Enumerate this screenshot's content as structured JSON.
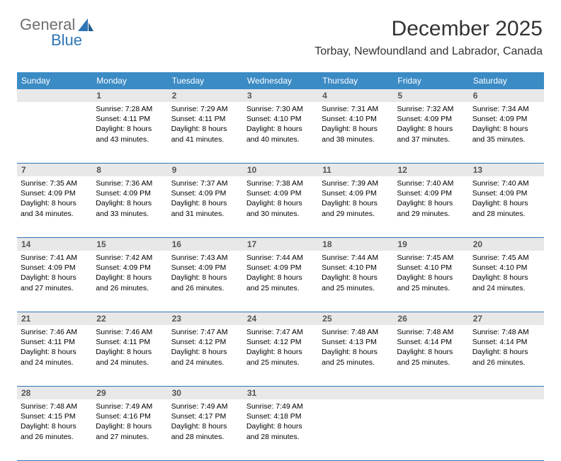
{
  "logo": {
    "text1": "General",
    "text2": "Blue"
  },
  "header": {
    "title": "December 2025",
    "subtitle": "Torbay, Newfoundland and Labrador, Canada"
  },
  "colors": {
    "header_bg": "#3b8bc5",
    "header_text": "#ffffff",
    "daynum_bg": "#e8e8e8",
    "row_border": "#2e75b6",
    "logo_gray": "#6d6e71",
    "logo_blue": "#2e75b6"
  },
  "daynames": [
    "Sunday",
    "Monday",
    "Tuesday",
    "Wednesday",
    "Thursday",
    "Friday",
    "Saturday"
  ],
  "weeks": [
    [
      {
        "day": "",
        "lines": []
      },
      {
        "day": "1",
        "lines": [
          "Sunrise: 7:28 AM",
          "Sunset: 4:11 PM",
          "Daylight: 8 hours",
          "and 43 minutes."
        ]
      },
      {
        "day": "2",
        "lines": [
          "Sunrise: 7:29 AM",
          "Sunset: 4:11 PM",
          "Daylight: 8 hours",
          "and 41 minutes."
        ]
      },
      {
        "day": "3",
        "lines": [
          "Sunrise: 7:30 AM",
          "Sunset: 4:10 PM",
          "Daylight: 8 hours",
          "and 40 minutes."
        ]
      },
      {
        "day": "4",
        "lines": [
          "Sunrise: 7:31 AM",
          "Sunset: 4:10 PM",
          "Daylight: 8 hours",
          "and 38 minutes."
        ]
      },
      {
        "day": "5",
        "lines": [
          "Sunrise: 7:32 AM",
          "Sunset: 4:09 PM",
          "Daylight: 8 hours",
          "and 37 minutes."
        ]
      },
      {
        "day": "6",
        "lines": [
          "Sunrise: 7:34 AM",
          "Sunset: 4:09 PM",
          "Daylight: 8 hours",
          "and 35 minutes."
        ]
      }
    ],
    [
      {
        "day": "7",
        "lines": [
          "Sunrise: 7:35 AM",
          "Sunset: 4:09 PM",
          "Daylight: 8 hours",
          "and 34 minutes."
        ]
      },
      {
        "day": "8",
        "lines": [
          "Sunrise: 7:36 AM",
          "Sunset: 4:09 PM",
          "Daylight: 8 hours",
          "and 33 minutes."
        ]
      },
      {
        "day": "9",
        "lines": [
          "Sunrise: 7:37 AM",
          "Sunset: 4:09 PM",
          "Daylight: 8 hours",
          "and 31 minutes."
        ]
      },
      {
        "day": "10",
        "lines": [
          "Sunrise: 7:38 AM",
          "Sunset: 4:09 PM",
          "Daylight: 8 hours",
          "and 30 minutes."
        ]
      },
      {
        "day": "11",
        "lines": [
          "Sunrise: 7:39 AM",
          "Sunset: 4:09 PM",
          "Daylight: 8 hours",
          "and 29 minutes."
        ]
      },
      {
        "day": "12",
        "lines": [
          "Sunrise: 7:40 AM",
          "Sunset: 4:09 PM",
          "Daylight: 8 hours",
          "and 29 minutes."
        ]
      },
      {
        "day": "13",
        "lines": [
          "Sunrise: 7:40 AM",
          "Sunset: 4:09 PM",
          "Daylight: 8 hours",
          "and 28 minutes."
        ]
      }
    ],
    [
      {
        "day": "14",
        "lines": [
          "Sunrise: 7:41 AM",
          "Sunset: 4:09 PM",
          "Daylight: 8 hours",
          "and 27 minutes."
        ]
      },
      {
        "day": "15",
        "lines": [
          "Sunrise: 7:42 AM",
          "Sunset: 4:09 PM",
          "Daylight: 8 hours",
          "and 26 minutes."
        ]
      },
      {
        "day": "16",
        "lines": [
          "Sunrise: 7:43 AM",
          "Sunset: 4:09 PM",
          "Daylight: 8 hours",
          "and 26 minutes."
        ]
      },
      {
        "day": "17",
        "lines": [
          "Sunrise: 7:44 AM",
          "Sunset: 4:09 PM",
          "Daylight: 8 hours",
          "and 25 minutes."
        ]
      },
      {
        "day": "18",
        "lines": [
          "Sunrise: 7:44 AM",
          "Sunset: 4:10 PM",
          "Daylight: 8 hours",
          "and 25 minutes."
        ]
      },
      {
        "day": "19",
        "lines": [
          "Sunrise: 7:45 AM",
          "Sunset: 4:10 PM",
          "Daylight: 8 hours",
          "and 25 minutes."
        ]
      },
      {
        "day": "20",
        "lines": [
          "Sunrise: 7:45 AM",
          "Sunset: 4:10 PM",
          "Daylight: 8 hours",
          "and 24 minutes."
        ]
      }
    ],
    [
      {
        "day": "21",
        "lines": [
          "Sunrise: 7:46 AM",
          "Sunset: 4:11 PM",
          "Daylight: 8 hours",
          "and 24 minutes."
        ]
      },
      {
        "day": "22",
        "lines": [
          "Sunrise: 7:46 AM",
          "Sunset: 4:11 PM",
          "Daylight: 8 hours",
          "and 24 minutes."
        ]
      },
      {
        "day": "23",
        "lines": [
          "Sunrise: 7:47 AM",
          "Sunset: 4:12 PM",
          "Daylight: 8 hours",
          "and 24 minutes."
        ]
      },
      {
        "day": "24",
        "lines": [
          "Sunrise: 7:47 AM",
          "Sunset: 4:12 PM",
          "Daylight: 8 hours",
          "and 25 minutes."
        ]
      },
      {
        "day": "25",
        "lines": [
          "Sunrise: 7:48 AM",
          "Sunset: 4:13 PM",
          "Daylight: 8 hours",
          "and 25 minutes."
        ]
      },
      {
        "day": "26",
        "lines": [
          "Sunrise: 7:48 AM",
          "Sunset: 4:14 PM",
          "Daylight: 8 hours",
          "and 25 minutes."
        ]
      },
      {
        "day": "27",
        "lines": [
          "Sunrise: 7:48 AM",
          "Sunset: 4:14 PM",
          "Daylight: 8 hours",
          "and 26 minutes."
        ]
      }
    ],
    [
      {
        "day": "28",
        "lines": [
          "Sunrise: 7:48 AM",
          "Sunset: 4:15 PM",
          "Daylight: 8 hours",
          "and 26 minutes."
        ]
      },
      {
        "day": "29",
        "lines": [
          "Sunrise: 7:49 AM",
          "Sunset: 4:16 PM",
          "Daylight: 8 hours",
          "and 27 minutes."
        ]
      },
      {
        "day": "30",
        "lines": [
          "Sunrise: 7:49 AM",
          "Sunset: 4:17 PM",
          "Daylight: 8 hours",
          "and 28 minutes."
        ]
      },
      {
        "day": "31",
        "lines": [
          "Sunrise: 7:49 AM",
          "Sunset: 4:18 PM",
          "Daylight: 8 hours",
          "and 28 minutes."
        ]
      },
      {
        "day": "",
        "lines": []
      },
      {
        "day": "",
        "lines": []
      },
      {
        "day": "",
        "lines": []
      }
    ]
  ]
}
